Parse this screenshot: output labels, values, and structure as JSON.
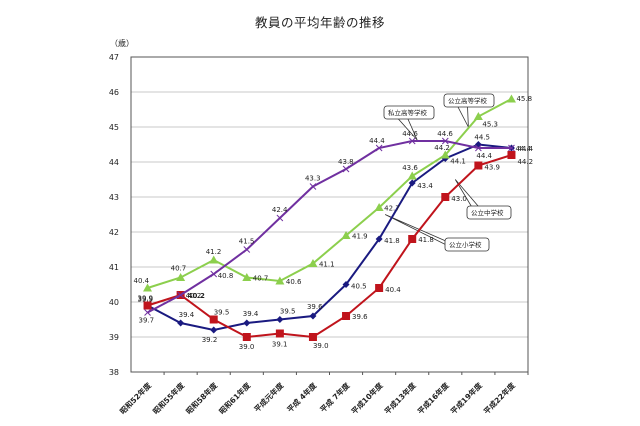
{
  "chart_data": {
    "type": "line",
    "title": "教員の平均年齢の推移",
    "ylabel": "（歳）",
    "xlabel": "",
    "ylim": [
      38,
      47
    ],
    "yticks": [
      38,
      39,
      40,
      41,
      42,
      43,
      44,
      45,
      46,
      47
    ],
    "grid": true,
    "categories": [
      "昭和52年度",
      "昭和55年度",
      "昭和58年度",
      "昭和61年度",
      "平成元年度",
      "平成 4年度",
      "平成 7年度",
      "平成10年度",
      "平成13年度",
      "平成16年度",
      "平成19年度",
      "平成22年度"
    ],
    "series": [
      {
        "name": "公立小学校",
        "color": "#1a1a80",
        "marker": "diamond",
        "values": [
          39.9,
          39.4,
          39.2,
          39.4,
          39.5,
          39.6,
          40.5,
          41.8,
          43.4,
          44.1,
          44.5,
          44.4
        ]
      },
      {
        "name": "公立中学校",
        "color": "#c0141c",
        "marker": "square",
        "values": [
          39.9,
          40.2,
          39.5,
          39.0,
          39.1,
          39.0,
          39.6,
          40.4,
          41.8,
          43.0,
          43.9,
          44.2
        ]
      },
      {
        "name": "公立高等学校",
        "color": "#8ccf4d",
        "marker": "triangle",
        "values": [
          40.4,
          40.7,
          41.2,
          40.7,
          40.6,
          41.1,
          41.9,
          42.7,
          43.6,
          44.2,
          45.3,
          45.8
        ]
      },
      {
        "name": "私立高等学校",
        "color": "#7030a0",
        "marker": "x",
        "values": [
          39.7,
          40.2,
          40.8,
          41.5,
          42.4,
          43.3,
          43.8,
          44.4,
          44.6,
          44.6,
          44.4,
          44.4
        ]
      }
    ],
    "callouts": [
      {
        "label": "公立高等学校",
        "series": "公立高等学校"
      },
      {
        "label": "私立高等学校",
        "series": "私立高等学校"
      },
      {
        "label": "公立中学校",
        "series": "公立中学校"
      },
      {
        "label": "公立小学校",
        "series": "公立小学校"
      }
    ],
    "legend": "callouts"
  }
}
